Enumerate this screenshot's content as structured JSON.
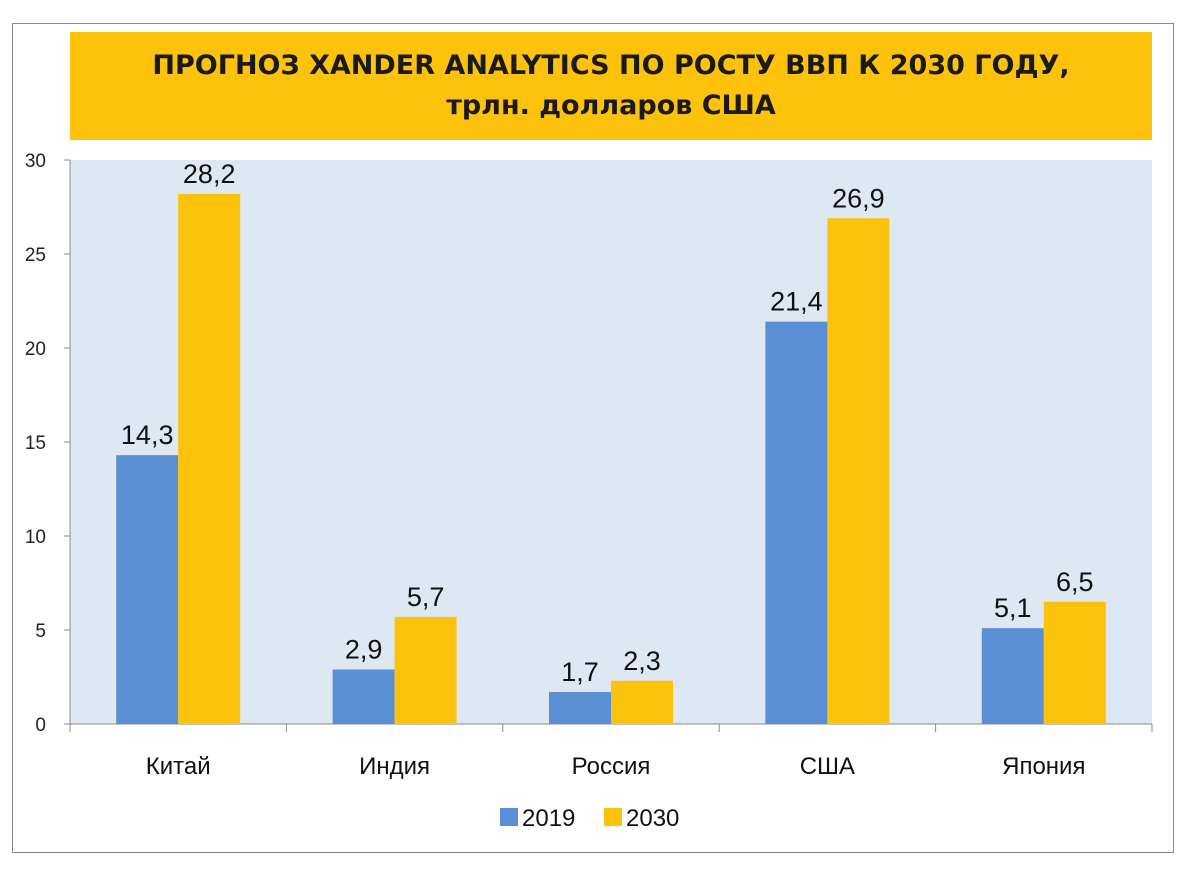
{
  "chart_data": {
    "type": "bar",
    "title_line1": "ПРОГНОЗ XANDER ANALYTICS ПО РОСТУ ВВП К 2030 ГОДУ,",
    "title_line2": "трлн. долларов США",
    "categories": [
      "Китай",
      "Индия",
      "Россия",
      "США",
      "Япония"
    ],
    "series": [
      {
        "name": "2019",
        "values": [
          14.3,
          2.9,
          1.7,
          21.4,
          5.1
        ],
        "labels": [
          "14,3",
          "2,9",
          "1,7",
          "21,4",
          "5,1"
        ],
        "color": "#5b8fd4"
      },
      {
        "name": "2030",
        "values": [
          28.2,
          5.7,
          2.3,
          26.9,
          6.5
        ],
        "labels": [
          "28,2",
          "5,7",
          "2,3",
          "26,9",
          "6,5"
        ],
        "color": "#fdc20b"
      }
    ],
    "ylim": [
      0,
      30
    ],
    "yticks": [
      0,
      5,
      10,
      15,
      20,
      25,
      30
    ],
    "grid": false,
    "legend": "bottom-center",
    "plot_background": "#dde8f3",
    "title_background": "#fdc20b"
  }
}
